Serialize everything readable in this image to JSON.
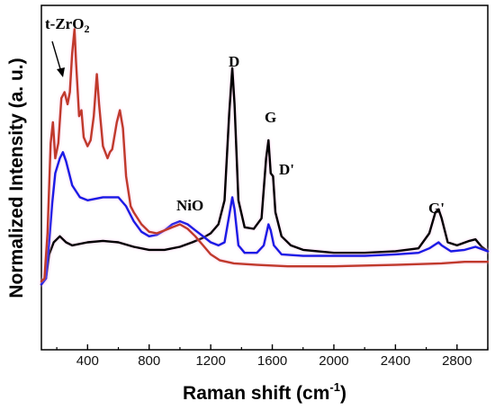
{
  "chart_data": {
    "type": "line",
    "title": "",
    "xlabel_main": "Raman shift (cm",
    "xlabel_sup": "-1",
    "xlabel_end": ")",
    "ylabel": "Normalized Intensity (a. u.)",
    "xlim": [
      100,
      3000
    ],
    "ylim": [
      0,
      1.0
    ],
    "x_ticks": [
      400,
      800,
      1200,
      1600,
      2000,
      2400,
      2800
    ],
    "x_tick_labels": [
      "400",
      "800",
      "1200",
      "1600",
      "2000",
      "2400",
      "2800"
    ],
    "y_ticks_labeled": false,
    "colors": {
      "black": "#000000",
      "blue": "#1a1ae6",
      "red": "#c0392b",
      "glow": "#f6b8e2"
    },
    "series": [
      {
        "color": "black",
        "points": [
          [
            100,
            0.08
          ],
          [
            130,
            0.1
          ],
          [
            150,
            0.18
          ],
          [
            180,
            0.22
          ],
          [
            220,
            0.24
          ],
          [
            260,
            0.22
          ],
          [
            300,
            0.21
          ],
          [
            400,
            0.22
          ],
          [
            500,
            0.225
          ],
          [
            600,
            0.22
          ],
          [
            700,
            0.205
          ],
          [
            800,
            0.195
          ],
          [
            900,
            0.195
          ],
          [
            1000,
            0.205
          ],
          [
            1080,
            0.22
          ],
          [
            1150,
            0.235
          ],
          [
            1200,
            0.25
          ],
          [
            1250,
            0.28
          ],
          [
            1290,
            0.36
          ],
          [
            1320,
            0.65
          ],
          [
            1340,
            0.8
          ],
          [
            1355,
            0.68
          ],
          [
            1380,
            0.36
          ],
          [
            1420,
            0.27
          ],
          [
            1480,
            0.265
          ],
          [
            1530,
            0.3
          ],
          [
            1560,
            0.5
          ],
          [
            1575,
            0.56
          ],
          [
            1590,
            0.45
          ],
          [
            1605,
            0.44
          ],
          [
            1620,
            0.32
          ],
          [
            1660,
            0.24
          ],
          [
            1720,
            0.21
          ],
          [
            1800,
            0.195
          ],
          [
            2000,
            0.185
          ],
          [
            2200,
            0.185
          ],
          [
            2400,
            0.19
          ],
          [
            2550,
            0.2
          ],
          [
            2620,
            0.25
          ],
          [
            2660,
            0.32
          ],
          [
            2680,
            0.33
          ],
          [
            2700,
            0.3
          ],
          [
            2740,
            0.22
          ],
          [
            2800,
            0.21
          ],
          [
            2880,
            0.225
          ],
          [
            2920,
            0.23
          ],
          [
            2960,
            0.205
          ],
          [
            3000,
            0.19
          ]
        ]
      },
      {
        "color": "blue",
        "points": [
          [
            100,
            0.08
          ],
          [
            130,
            0.1
          ],
          [
            150,
            0.22
          ],
          [
            170,
            0.35
          ],
          [
            190,
            0.45
          ],
          [
            220,
            0.5
          ],
          [
            240,
            0.52
          ],
          [
            260,
            0.49
          ],
          [
            280,
            0.45
          ],
          [
            300,
            0.41
          ],
          [
            350,
            0.37
          ],
          [
            400,
            0.36
          ],
          [
            500,
            0.37
          ],
          [
            600,
            0.37
          ],
          [
            650,
            0.34
          ],
          [
            700,
            0.29
          ],
          [
            750,
            0.255
          ],
          [
            800,
            0.24
          ],
          [
            850,
            0.245
          ],
          [
            900,
            0.26
          ],
          [
            950,
            0.28
          ],
          [
            1000,
            0.29
          ],
          [
            1050,
            0.28
          ],
          [
            1100,
            0.26
          ],
          [
            1150,
            0.24
          ],
          [
            1200,
            0.22
          ],
          [
            1250,
            0.21
          ],
          [
            1290,
            0.22
          ],
          [
            1320,
            0.31
          ],
          [
            1340,
            0.37
          ],
          [
            1355,
            0.33
          ],
          [
            1380,
            0.21
          ],
          [
            1420,
            0.185
          ],
          [
            1500,
            0.185
          ],
          [
            1545,
            0.21
          ],
          [
            1575,
            0.28
          ],
          [
            1590,
            0.26
          ],
          [
            1610,
            0.21
          ],
          [
            1660,
            0.18
          ],
          [
            1800,
            0.175
          ],
          [
            2000,
            0.175
          ],
          [
            2200,
            0.175
          ],
          [
            2400,
            0.18
          ],
          [
            2550,
            0.185
          ],
          [
            2620,
            0.2
          ],
          [
            2680,
            0.22
          ],
          [
            2700,
            0.21
          ],
          [
            2760,
            0.19
          ],
          [
            2850,
            0.195
          ],
          [
            2920,
            0.205
          ],
          [
            3000,
            0.19
          ]
        ]
      },
      {
        "color": "red",
        "points": [
          [
            100,
            0.09
          ],
          [
            120,
            0.1
          ],
          [
            140,
            0.25
          ],
          [
            160,
            0.55
          ],
          [
            175,
            0.62
          ],
          [
            190,
            0.5
          ],
          [
            210,
            0.55
          ],
          [
            230,
            0.7
          ],
          [
            250,
            0.72
          ],
          [
            270,
            0.68
          ],
          [
            285,
            0.72
          ],
          [
            300,
            0.85
          ],
          [
            315,
            0.93
          ],
          [
            325,
            0.82
          ],
          [
            345,
            0.64
          ],
          [
            360,
            0.66
          ],
          [
            375,
            0.57
          ],
          [
            400,
            0.54
          ],
          [
            420,
            0.56
          ],
          [
            440,
            0.64
          ],
          [
            460,
            0.78
          ],
          [
            475,
            0.68
          ],
          [
            500,
            0.54
          ],
          [
            530,
            0.5
          ],
          [
            545,
            0.52
          ],
          [
            560,
            0.53
          ],
          [
            590,
            0.62
          ],
          [
            610,
            0.66
          ],
          [
            630,
            0.6
          ],
          [
            650,
            0.44
          ],
          [
            680,
            0.34
          ],
          [
            700,
            0.32
          ],
          [
            750,
            0.28
          ],
          [
            800,
            0.255
          ],
          [
            850,
            0.25
          ],
          [
            900,
            0.26
          ],
          [
            950,
            0.27
          ],
          [
            1000,
            0.28
          ],
          [
            1050,
            0.265
          ],
          [
            1100,
            0.24
          ],
          [
            1150,
            0.21
          ],
          [
            1200,
            0.18
          ],
          [
            1260,
            0.16
          ],
          [
            1350,
            0.15
          ],
          [
            1500,
            0.145
          ],
          [
            1700,
            0.14
          ],
          [
            2000,
            0.14
          ],
          [
            2400,
            0.145
          ],
          [
            2700,
            0.15
          ],
          [
            2850,
            0.155
          ],
          [
            3000,
            0.155
          ]
        ]
      }
    ],
    "annotations": [
      {
        "label": "t-ZrO",
        "sub": "2"
      },
      {
        "label": "NiO"
      },
      {
        "label": "D"
      },
      {
        "label": "G"
      },
      {
        "label": "D'"
      },
      {
        "label": "G'"
      }
    ]
  }
}
